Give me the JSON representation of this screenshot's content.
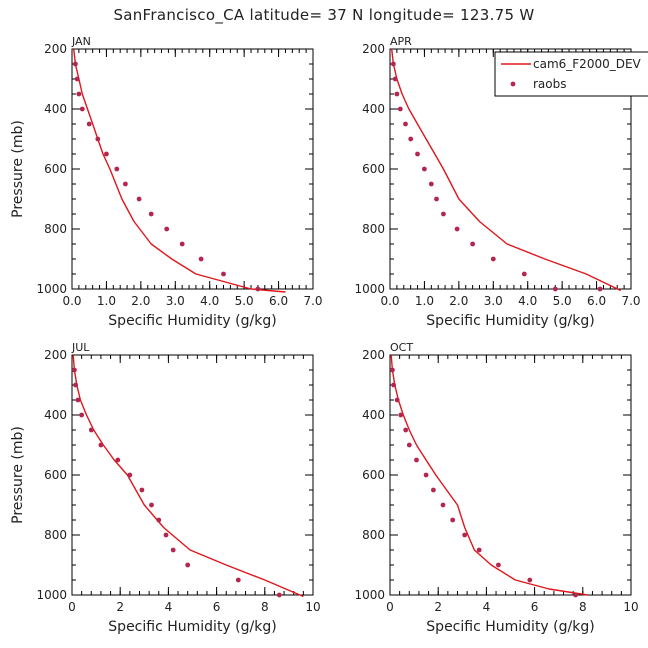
{
  "title": "SanFrancisco_CA  latitude= 37 N longitude= 123.75 W",
  "colors": {
    "model": "#e0161b",
    "obs": "#b5264f",
    "axis": "#000000"
  },
  "legend": {
    "model_label": "cam6_F2000_DEV",
    "obs_label": "raobs"
  },
  "chart_data": [
    {
      "type": "line",
      "panel": "JAN",
      "xlabel": "Specific Humidity (g/kg)",
      "ylabel": "Pressure (mb)",
      "xlim": [
        0,
        7
      ],
      "ylim": [
        1000,
        200
      ],
      "xticks": [
        "0.0",
        "1.0",
        "2.0",
        "3.0",
        "4.0",
        "5.0",
        "6.0",
        "7.0"
      ],
      "xtick_values": [
        0,
        1,
        2,
        3,
        4,
        5,
        6,
        7
      ],
      "yticks": [
        "200",
        "400",
        "600",
        "800",
        "1000"
      ],
      "ytick_values": [
        200,
        400,
        600,
        800,
        1000
      ],
      "model": {
        "name": "cam6_F2000_DEV",
        "x": [
          0.05,
          0.1,
          0.2,
          0.3,
          0.45,
          0.6,
          0.75,
          0.9,
          1.1,
          1.45,
          1.8,
          2.3,
          2.9,
          3.6,
          4.4,
          5.2,
          6.2
        ],
        "y": [
          200,
          250,
          300,
          350,
          400,
          450,
          500,
          550,
          600,
          700,
          775,
          850,
          900,
          950,
          975,
          1000,
          1010
        ]
      },
      "obs": {
        "name": "raobs",
        "x": [
          0.1,
          0.15,
          0.2,
          0.3,
          0.5,
          0.75,
          1.0,
          1.3,
          1.55,
          1.95,
          2.3,
          2.75,
          3.2,
          3.75,
          4.4,
          5.4
        ],
        "y": [
          250,
          300,
          350,
          400,
          450,
          500,
          550,
          600,
          650,
          700,
          750,
          800,
          850,
          900,
          950,
          1000
        ]
      }
    },
    {
      "type": "line",
      "panel": "APR",
      "xlabel": "Specific Humidity (g/kg)",
      "ylabel": "",
      "xlim": [
        0,
        7
      ],
      "ylim": [
        1000,
        200
      ],
      "xticks": [
        "0.0",
        "1.0",
        "2.0",
        "3.0",
        "4.0",
        "5.0",
        "6.0",
        "7.0"
      ],
      "xtick_values": [
        0,
        1,
        2,
        3,
        4,
        5,
        6,
        7
      ],
      "yticks": [
        "200",
        "400",
        "600",
        "800",
        "1000"
      ],
      "ytick_values": [
        200,
        400,
        600,
        800,
        1000
      ],
      "model": {
        "name": "cam6_F2000_DEV",
        "x": [
          0.05,
          0.1,
          0.2,
          0.35,
          0.55,
          0.8,
          1.05,
          1.3,
          1.55,
          2.0,
          2.6,
          3.4,
          4.5,
          5.7,
          6.7
        ],
        "y": [
          200,
          250,
          300,
          350,
          400,
          450,
          500,
          550,
          600,
          700,
          775,
          850,
          900,
          950,
          1005
        ]
      },
      "obs": {
        "name": "raobs",
        "x": [
          0.1,
          0.15,
          0.2,
          0.3,
          0.45,
          0.6,
          0.8,
          1.0,
          1.2,
          1.35,
          1.55,
          1.95,
          2.4,
          3.0,
          3.9,
          4.8,
          6.1
        ],
        "y": [
          250,
          300,
          350,
          400,
          450,
          500,
          550,
          600,
          650,
          700,
          750,
          800,
          850,
          900,
          950,
          1000,
          1000
        ]
      }
    },
    {
      "type": "line",
      "panel": "JUL",
      "xlabel": "Specific Humidity (g/kg)",
      "ylabel": "Pressure (mb)",
      "xlim": [
        0,
        10
      ],
      "ylim": [
        1000,
        200
      ],
      "xticks": [
        "0",
        "2",
        "4",
        "6",
        "8",
        "10"
      ],
      "xtick_values": [
        0,
        2,
        4,
        6,
        8,
        10
      ],
      "yticks": [
        "200",
        "400",
        "600",
        "800",
        "1000"
      ],
      "ytick_values": [
        200,
        400,
        600,
        800,
        1000
      ],
      "model": {
        "name": "cam6_F2000_DEV",
        "x": [
          0.05,
          0.1,
          0.2,
          0.35,
          0.6,
          0.9,
          1.3,
          1.75,
          2.3,
          3.0,
          3.8,
          4.9,
          6.4,
          8.0,
          9.6
        ],
        "y": [
          200,
          250,
          300,
          350,
          400,
          450,
          500,
          550,
          600,
          700,
          775,
          850,
          900,
          950,
          1005
        ]
      },
      "obs": {
        "name": "raobs",
        "x": [
          0.1,
          0.15,
          0.25,
          0.4,
          0.8,
          1.2,
          1.9,
          2.4,
          2.9,
          3.3,
          3.6,
          3.9,
          4.2,
          4.8,
          6.9,
          8.6
        ],
        "y": [
          250,
          300,
          350,
          400,
          450,
          500,
          550,
          600,
          650,
          700,
          750,
          800,
          850,
          900,
          950,
          1000
        ]
      }
    },
    {
      "type": "line",
      "panel": "OCT",
      "xlabel": "Specific Humidity (g/kg)",
      "ylabel": "",
      "xlim": [
        0,
        10
      ],
      "ylim": [
        1000,
        200
      ],
      "xticks": [
        "0",
        "2",
        "4",
        "6",
        "8",
        "10"
      ],
      "xtick_values": [
        0,
        2,
        4,
        6,
        8,
        10
      ],
      "yticks": [
        "200",
        "400",
        "600",
        "800",
        "1000"
      ],
      "ytick_values": [
        200,
        400,
        600,
        800,
        1000
      ],
      "model": {
        "name": "cam6_F2000_DEV",
        "x": [
          0.05,
          0.1,
          0.2,
          0.35,
          0.55,
          0.8,
          1.1,
          1.5,
          1.9,
          2.35,
          2.8,
          3.1,
          3.5,
          4.2,
          5.2,
          6.6,
          8.2
        ],
        "y": [
          200,
          250,
          300,
          350,
          400,
          450,
          500,
          550,
          600,
          650,
          700,
          775,
          850,
          900,
          950,
          980,
          1000
        ]
      },
      "obs": {
        "name": "raobs",
        "x": [
          0.1,
          0.15,
          0.3,
          0.45,
          0.65,
          0.8,
          1.1,
          1.5,
          1.8,
          2.2,
          2.6,
          3.1,
          3.7,
          4.5,
          5.8,
          7.7
        ],
        "y": [
          250,
          300,
          350,
          400,
          450,
          500,
          550,
          600,
          650,
          700,
          750,
          800,
          850,
          900,
          950,
          1000
        ]
      }
    }
  ]
}
